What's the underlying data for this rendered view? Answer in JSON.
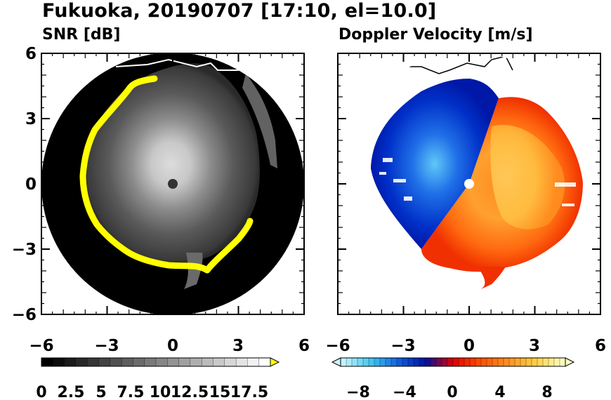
{
  "title": "Fukuoka, 20190707 [17:10, el=10.0]",
  "chart_data": [
    {
      "type": "heatmap",
      "title": "SNR [dB]",
      "xlim": [
        -6,
        6
      ],
      "ylim": [
        -6,
        6
      ],
      "xticks": [
        "−6",
        "−3",
        "0",
        "3",
        "6"
      ],
      "yticks": [
        "6",
        "3",
        "0",
        "−3",
        "−6"
      ],
      "colorbar": {
        "min": 0,
        "max": 18.5,
        "levels": 20,
        "labels": [
          "0",
          "2.5",
          "5",
          "7.5",
          "10",
          "12.5",
          "15",
          "17.5"
        ],
        "colors": [
          "#000000",
          "#ffffff"
        ],
        "overflow_color": "#ffff00"
      }
    },
    {
      "type": "heatmap",
      "title": "Doppler Velocity [m/s]",
      "xlim": [
        -6,
        6
      ],
      "ylim": [
        -6,
        6
      ],
      "xticks": [
        "−6",
        "−3",
        "0",
        "3",
        "6"
      ],
      "yticks": [],
      "colorbar": {
        "min": -10,
        "max": 10,
        "labels": [
          "−8",
          "−4",
          "0",
          "4",
          "8"
        ],
        "colors": [
          "#c8f4ff",
          "#40c8f0",
          "#1060e0",
          "#0010a0",
          "#e00000",
          "#ff5000",
          "#ff9020",
          "#ffd040",
          "#ffffc0"
        ]
      }
    }
  ]
}
